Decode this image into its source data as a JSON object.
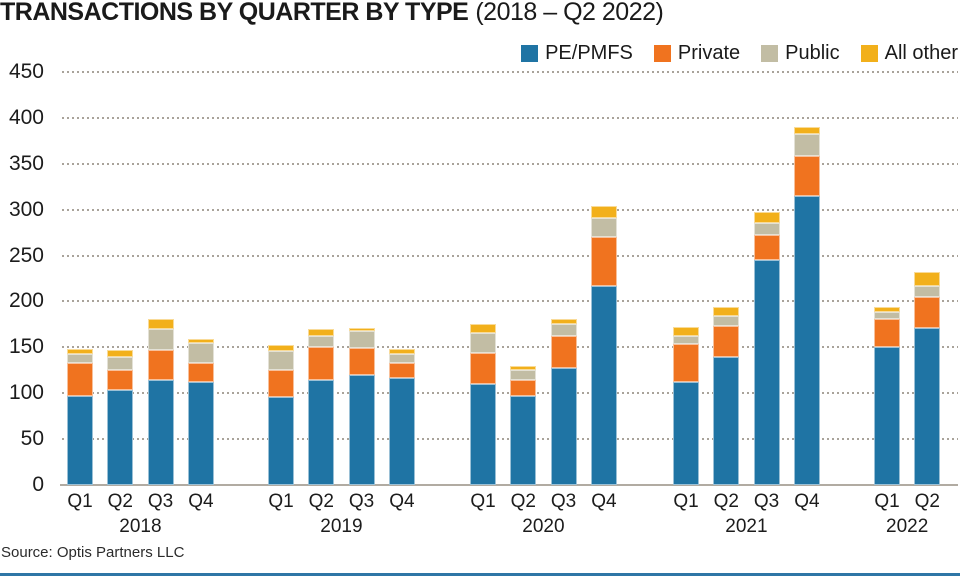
{
  "header": {
    "title_main": "TRANSACTIONS BY QUARTER BY TYPE",
    "title_period": "(2018 – Q2 2022)"
  },
  "footer": {
    "source": "Source: Optis Partners LLC"
  },
  "colors": {
    "pe_pmfs": "#1f74a4",
    "private": "#f0731f",
    "public": "#c2bda4",
    "all_other": "#f2b01b",
    "grid": "#a9a39a",
    "axis": "#b1aba2",
    "bottom_rule": "#2e76a6",
    "text": "#1a1a1a"
  },
  "chart_data": {
    "type": "bar",
    "stacked": true,
    "title": "TRANSACTIONS BY QUARTER BY TYPE (2018 – Q2 2022)",
    "xlabel": "",
    "ylabel": "",
    "ylim": [
      0,
      450
    ],
    "yticks": [
      0,
      50,
      100,
      150,
      200,
      250,
      300,
      350,
      400,
      450
    ],
    "grid": "horizontal-dotted",
    "legend_position": "top-right",
    "groups": [
      {
        "year": "2018",
        "quarters": [
          "Q1",
          "Q2",
          "Q3",
          "Q4"
        ]
      },
      {
        "year": "2019",
        "quarters": [
          "Q1",
          "Q2",
          "Q3",
          "Q4"
        ]
      },
      {
        "year": "2020",
        "quarters": [
          "Q1",
          "Q2",
          "Q3",
          "Q4"
        ]
      },
      {
        "year": "2021",
        "quarters": [
          "Q1",
          "Q2",
          "Q3",
          "Q4"
        ]
      },
      {
        "year": "2022",
        "quarters": [
          "Q1",
          "Q2"
        ]
      }
    ],
    "categories": [
      "2018 Q1",
      "2018 Q2",
      "2018 Q3",
      "2018 Q4",
      "2019 Q1",
      "2019 Q2",
      "2019 Q3",
      "2019 Q4",
      "2020 Q1",
      "2020 Q2",
      "2020 Q3",
      "2020 Q4",
      "2021 Q1",
      "2021 Q2",
      "2021 Q3",
      "2021 Q4",
      "2022 Q1",
      "2022 Q2"
    ],
    "series": [
      {
        "name": "PE/PMFS",
        "color": "#1f74a4",
        "values": [
          97,
          104,
          115,
          112,
          96,
          115,
          120,
          117,
          110,
          97,
          128,
          217,
          112,
          140,
          245,
          315,
          150,
          171
        ]
      },
      {
        "name": "Private",
        "color": "#f0731f",
        "values": [
          36,
          21,
          32,
          21,
          29,
          36,
          29,
          16,
          34,
          18,
          34,
          53,
          42,
          33,
          27,
          43,
          31,
          34
        ]
      },
      {
        "name": "Public",
        "color": "#c2bda4",
        "values": [
          10,
          15,
          23,
          22,
          21,
          12,
          19,
          10,
          22,
          10,
          14,
          21,
          8,
          11,
          13,
          24,
          7,
          12
        ]
      },
      {
        "name": "All other",
        "color": "#f2b01b",
        "values": [
          5,
          7,
          11,
          4,
          7,
          7,
          3,
          5,
          9,
          5,
          5,
          13,
          10,
          10,
          12,
          8,
          6,
          15
        ]
      }
    ],
    "totals": [
      148,
      147,
      181,
      159,
      153,
      170,
      171,
      148,
      175,
      130,
      181,
      304,
      172,
      194,
      297,
      390,
      194,
      232
    ]
  }
}
